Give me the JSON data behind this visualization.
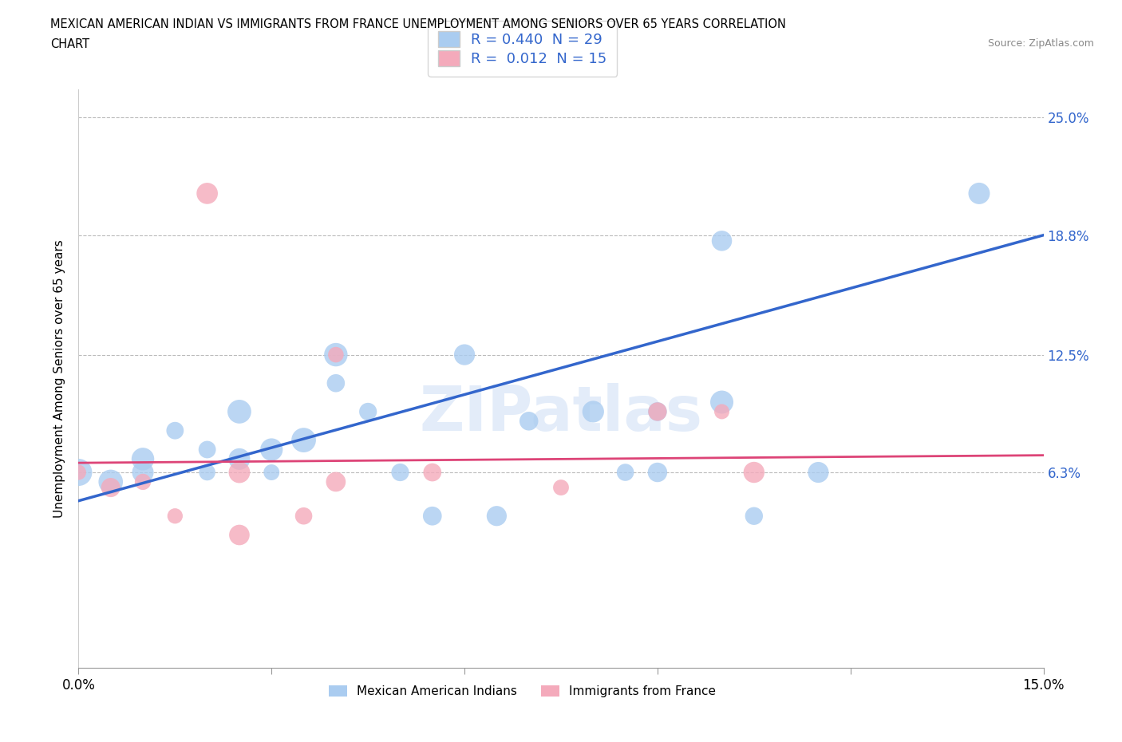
{
  "title_line1": "MEXICAN AMERICAN INDIAN VS IMMIGRANTS FROM FRANCE UNEMPLOYMENT AMONG SENIORS OVER 65 YEARS CORRELATION",
  "title_line2": "CHART",
  "source": "Source: ZipAtlas.com",
  "ylabel": "Unemployment Among Seniors over 65 years",
  "xmin": 0.0,
  "xmax": 0.15,
  "ymin": -0.04,
  "ymax": 0.265,
  "yticks": [
    0.063,
    0.125,
    0.188,
    0.25
  ],
  "ytick_labels": [
    "6.3%",
    "12.5%",
    "18.8%",
    "25.0%"
  ],
  "xticks": [
    0.0,
    0.03,
    0.06,
    0.09,
    0.12,
    0.15
  ],
  "xtick_labels": [
    "0.0%",
    "",
    "",
    "",
    "",
    "15.0%"
  ],
  "blue_R": 0.44,
  "blue_N": 29,
  "pink_R": 0.012,
  "pink_N": 15,
  "blue_color": "#aaccf0",
  "blue_line_color": "#3366cc",
  "pink_color": "#f4aabb",
  "pink_line_color": "#dd4477",
  "watermark": "ZIPatlas",
  "blue_scatter_x": [
    0.0,
    0.005,
    0.01,
    0.01,
    0.015,
    0.02,
    0.02,
    0.025,
    0.025,
    0.03,
    0.03,
    0.035,
    0.04,
    0.04,
    0.045,
    0.05,
    0.055,
    0.06,
    0.065,
    0.07,
    0.08,
    0.085,
    0.09,
    0.09,
    0.1,
    0.1,
    0.105,
    0.115,
    0.14
  ],
  "blue_scatter_y": [
    0.063,
    0.058,
    0.07,
    0.063,
    0.085,
    0.075,
    0.063,
    0.095,
    0.07,
    0.075,
    0.063,
    0.08,
    0.125,
    0.11,
    0.095,
    0.063,
    0.04,
    0.125,
    0.04,
    0.09,
    0.095,
    0.063,
    0.095,
    0.063,
    0.185,
    0.1,
    0.04,
    0.063,
    0.21
  ],
  "pink_scatter_x": [
    0.0,
    0.005,
    0.01,
    0.015,
    0.02,
    0.025,
    0.025,
    0.035,
    0.04,
    0.04,
    0.055,
    0.075,
    0.09,
    0.1,
    0.105
  ],
  "pink_scatter_y": [
    0.063,
    0.055,
    0.058,
    0.04,
    0.21,
    0.063,
    0.03,
    0.04,
    0.125,
    0.058,
    0.063,
    0.055,
    0.095,
    0.095,
    0.063
  ],
  "blue_trend_x0": 0.0,
  "blue_trend_y0": 0.048,
  "blue_trend_x1": 0.15,
  "blue_trend_y1": 0.188,
  "pink_trend_x0": 0.0,
  "pink_trend_y0": 0.068,
  "pink_trend_x1": 0.15,
  "pink_trend_y1": 0.072
}
